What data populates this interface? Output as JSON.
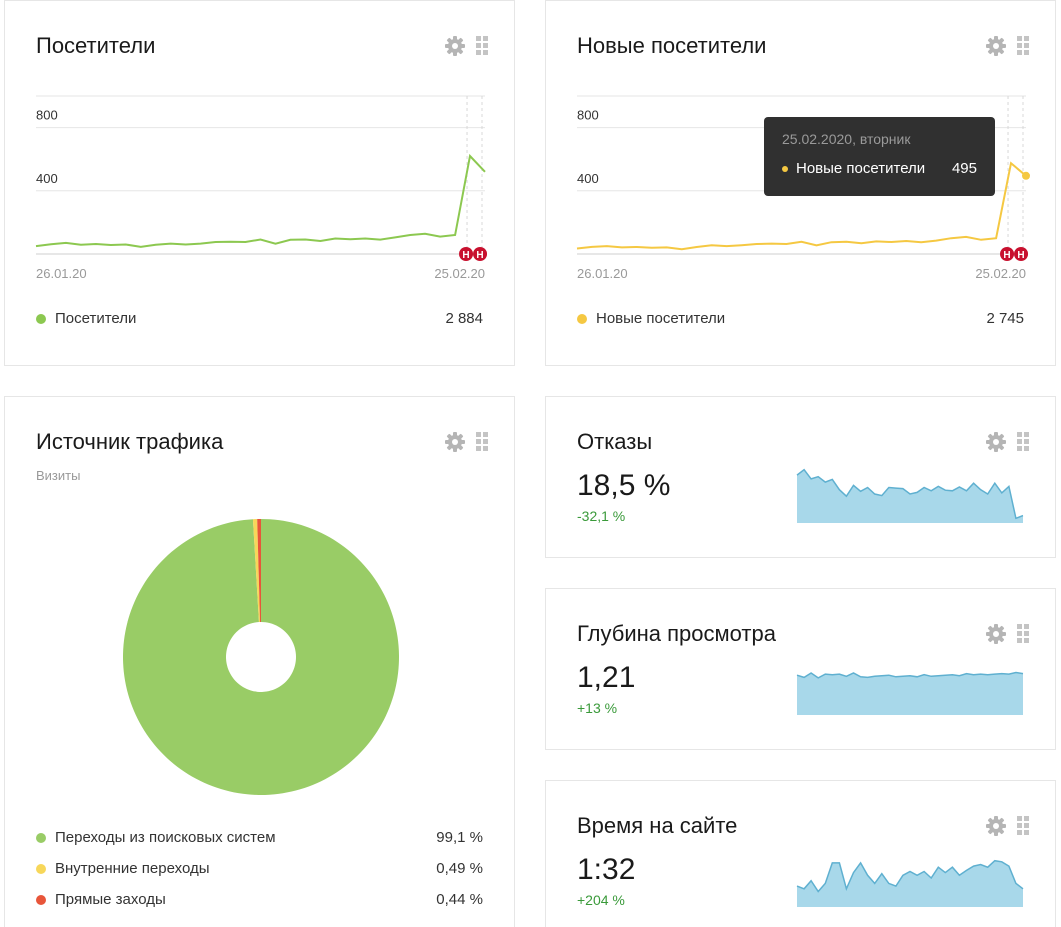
{
  "visitors": {
    "title": "Посетители",
    "legend": {
      "label": "Посетители",
      "value": "2 884"
    },
    "color": "#8cc850",
    "chart_data": {
      "type": "line",
      "ylim": [
        0,
        1000
      ],
      "yticks": [
        "800",
        "400"
      ],
      "x_start_label": "26.01.20",
      "x_end_label": "25.02.20",
      "values": [
        50,
        62,
        70,
        58,
        63,
        57,
        60,
        45,
        58,
        66,
        60,
        66,
        76,
        78,
        76,
        92,
        65,
        90,
        92,
        82,
        98,
        93,
        98,
        91,
        105,
        120,
        128,
        110,
        120,
        620,
        520
      ],
      "markers": [
        "Н",
        "Н"
      ]
    }
  },
  "new_visitors": {
    "title": "Новые посетители",
    "legend": {
      "label": "Новые посетители",
      "value": "2 745"
    },
    "color": "#f5c842",
    "tooltip": {
      "date": "25.02.2020, вторник",
      "label": "Новые посетители",
      "value": "495"
    },
    "chart_data": {
      "type": "line",
      "ylim": [
        0,
        1000
      ],
      "yticks": [
        "800",
        "400"
      ],
      "x_start_label": "26.01.20",
      "x_end_label": "25.02.20",
      "values": [
        35,
        45,
        50,
        42,
        44,
        40,
        42,
        30,
        44,
        55,
        50,
        56,
        63,
        66,
        63,
        77,
        55,
        75,
        77,
        68,
        80,
        76,
        82,
        75,
        85,
        100,
        108,
        90,
        100,
        575,
        495
      ],
      "markers": [
        "Н",
        "Н"
      ]
    }
  },
  "traffic": {
    "title": "Источник трафика",
    "subtitle": "Визиты",
    "chart_data": {
      "type": "pie",
      "slices": [
        {
          "label": "Переходы из поисковых систем",
          "value": 99.1,
          "display": "99,1 %",
          "color": "#99cc66"
        },
        {
          "label": "Внутренние переходы",
          "value": 0.49,
          "display": "0,49 %",
          "color": "#f7d75a"
        },
        {
          "label": "Прямые заходы",
          "value": 0.44,
          "display": "0,44 %",
          "color": "#e8553a"
        }
      ]
    }
  },
  "bounce": {
    "title": "Отказы",
    "value": "18,5 %",
    "delta": "-32,1 %",
    "chart_data": {
      "type": "area",
      "values": [
        85,
        95,
        78,
        82,
        72,
        77,
        58,
        46,
        66,
        55,
        62,
        50,
        47,
        62,
        61,
        60,
        50,
        53,
        62,
        56,
        64,
        57,
        56,
        63,
        56,
        70,
        58,
        50,
        70,
        52,
        64,
        5,
        10
      ]
    }
  },
  "depth": {
    "title": "Глубина просмотра",
    "value": "1,21",
    "delta": "+13 %",
    "chart_data": {
      "type": "area",
      "values": [
        70,
        66,
        74,
        65,
        72,
        71,
        72,
        68,
        74,
        67,
        66,
        68,
        69,
        70,
        67,
        68,
        69,
        67,
        71,
        68,
        69,
        70,
        71,
        69,
        73,
        71,
        72,
        71,
        72,
        73,
        72,
        75,
        73
      ]
    }
  },
  "time": {
    "title": "Время на сайте",
    "value": "1:32",
    "delta": "+204 %",
    "chart_data": {
      "type": "area",
      "values": [
        35,
        30,
        45,
        25,
        40,
        78,
        78,
        30,
        60,
        78,
        55,
        40,
        58,
        40,
        35,
        55,
        62,
        55,
        62,
        50,
        70,
        60,
        70,
        55,
        64,
        72,
        75,
        70,
        82,
        80,
        72,
        40,
        30
      ]
    }
  }
}
